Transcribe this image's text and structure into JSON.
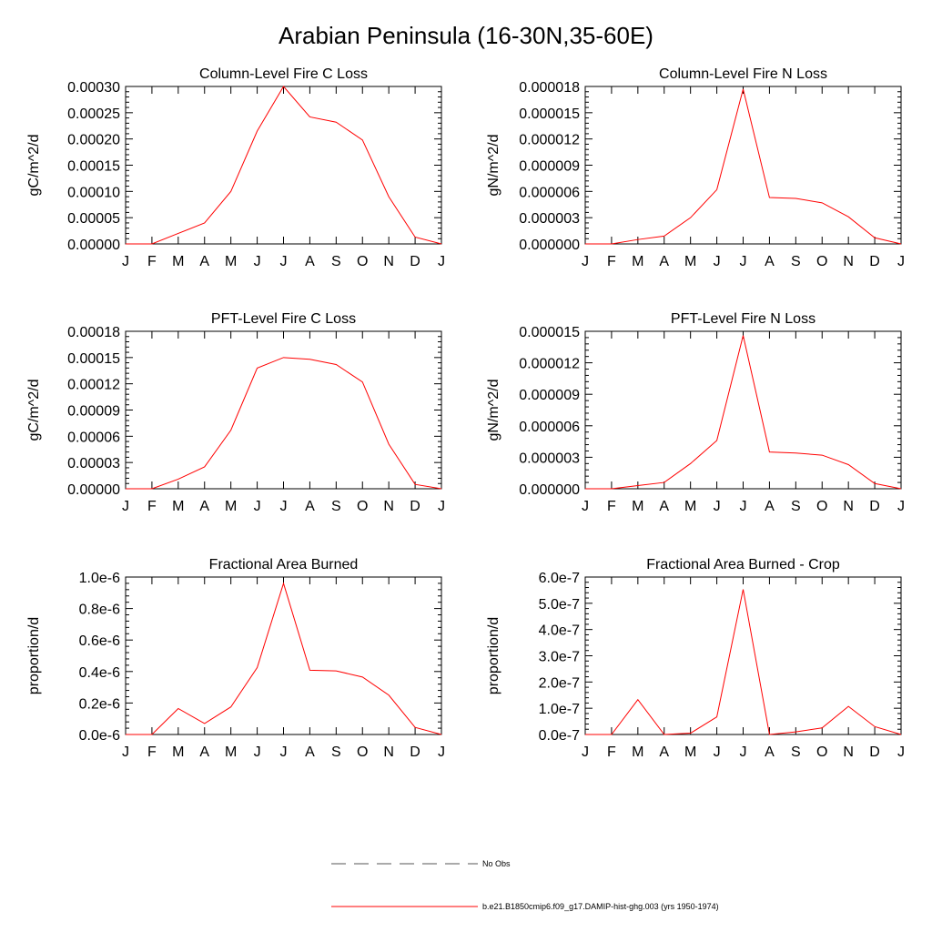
{
  "title": "Arabian Peninsula (16-30N,35-60E)",
  "months": [
    "J",
    "F",
    "M",
    "A",
    "M",
    "J",
    "J",
    "A",
    "S",
    "O",
    "N",
    "D",
    "J"
  ],
  "chart_data": [
    {
      "type": "line",
      "title": "Column-Level Fire C Loss",
      "ylabel": "gC/m^2/d",
      "ylim": [
        0,
        0.0003
      ],
      "yticks": [
        "0.00000",
        "0.00005",
        "0.00010",
        "0.00015",
        "0.00020",
        "0.00025",
        "0.00030"
      ],
      "series": [
        {
          "values": [
            0,
            0,
            2e-05,
            4e-05,
            0.0001,
            0.000215,
            0.0003,
            0.000242,
            0.000232,
            0.000198,
            9e-05,
            1.3e-05,
            0
          ]
        }
      ]
    },
    {
      "type": "line",
      "title": "Column-Level Fire N Loss",
      "ylabel": "gN/m^2/d",
      "ylim": [
        0,
        1.8e-05
      ],
      "yticks": [
        "0.000000",
        "0.000003",
        "0.000006",
        "0.000009",
        "0.000012",
        "0.000015",
        "0.000018"
      ],
      "series": [
        {
          "values": [
            0,
            0,
            5e-07,
            9e-07,
            3e-06,
            6.2e-06,
            1.77e-05,
            5.3e-06,
            5.2e-06,
            4.7e-06,
            3.1e-06,
            7e-07,
            0
          ]
        }
      ]
    },
    {
      "type": "line",
      "title": "PFT-Level Fire C Loss",
      "ylabel": "gC/m^2/d",
      "ylim": [
        0,
        0.00018
      ],
      "yticks": [
        "0.00000",
        "0.00003",
        "0.00006",
        "0.00009",
        "0.00012",
        "0.00015",
        "0.00018"
      ],
      "series": [
        {
          "values": [
            0,
            0,
            1.1e-05,
            2.5e-05,
            6.7e-05,
            0.000138,
            0.00015,
            0.000148,
            0.000142,
            0.000122,
            5.1e-05,
            5e-06,
            0
          ]
        }
      ]
    },
    {
      "type": "line",
      "title": "PFT-Level Fire N Loss",
      "ylabel": "gN/m^2/d",
      "ylim": [
        0,
        1.5e-05
      ],
      "yticks": [
        "0.000000",
        "0.000003",
        "0.000006",
        "0.000009",
        "0.000012",
        "0.000015"
      ],
      "series": [
        {
          "values": [
            0,
            0,
            3e-07,
            6e-07,
            2.4e-06,
            4.6e-06,
            1.46e-05,
            3.5e-06,
            3.4e-06,
            3.2e-06,
            2.3e-06,
            5e-07,
            0
          ]
        }
      ]
    },
    {
      "type": "line",
      "title": "Fractional Area Burned",
      "ylabel": "proportion/d",
      "ylim": [
        0,
        1e-06
      ],
      "yticks": [
        "0.0e-6",
        "0.2e-6",
        "0.4e-6",
        "0.6e-6",
        "0.8e-6",
        "1.0e-6"
      ],
      "series": [
        {
          "values": [
            0,
            0,
            1.65e-07,
            7e-08,
            1.75e-07,
            4.25e-07,
            9.6e-07,
            4.08e-07,
            4.04e-07,
            3.65e-07,
            2.5e-07,
            4.5e-08,
            0
          ]
        }
      ]
    },
    {
      "type": "line",
      "title": "Fractional Area Burned - Crop",
      "ylabel": "proportion/d",
      "ylim": [
        0,
        6e-07
      ],
      "yticks": [
        "0.0e-7",
        "1.0e-7",
        "2.0e-7",
        "3.0e-7",
        "4.0e-7",
        "5.0e-7",
        "6.0e-7"
      ],
      "series": [
        {
          "values": [
            0,
            0,
            1.33e-07,
            0,
            5e-09,
            6.7e-08,
            5.53e-07,
            0,
            1e-08,
            2.5e-08,
            1.07e-07,
            3e-08,
            0
          ]
        }
      ]
    }
  ],
  "legend": {
    "items": [
      {
        "label": "No Obs",
        "style": "dashed",
        "color": "#555555"
      },
      {
        "label": "b.e21.B1850cmip6.f09_g17.DAMIP-hist-ghg.003 (yrs 1950-1974)",
        "style": "solid",
        "color": "#ff0000"
      }
    ]
  },
  "colors": {
    "series": "#ff0000",
    "axis": "#000000"
  }
}
